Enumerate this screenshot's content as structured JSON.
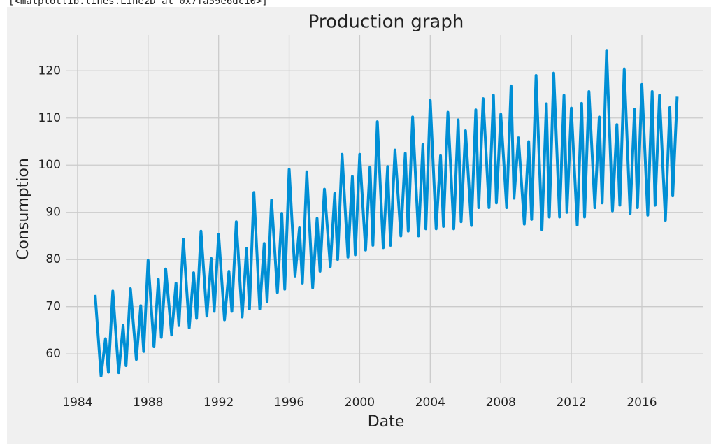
{
  "output_text": "[<matplotlib.lines.Line2D at 0x7fa59e6dc10>]",
  "chart_data": {
    "type": "line",
    "title": "Production graph",
    "x_label": "Date",
    "y_label": "Consumption",
    "x": [
      "1985-01",
      "1985-05",
      "1985-08",
      "1985-10",
      "1986-01",
      "1986-05",
      "1986-08",
      "1986-10",
      "1987-01",
      "1987-05",
      "1987-08",
      "1987-10",
      "1988-01",
      "1988-05",
      "1988-08",
      "1988-10",
      "1989-01",
      "1989-05",
      "1989-08",
      "1989-10",
      "1990-01",
      "1990-05",
      "1990-08",
      "1990-10",
      "1991-01",
      "1991-05",
      "1991-08",
      "1991-10",
      "1992-01",
      "1992-05",
      "1992-08",
      "1992-10",
      "1993-01",
      "1993-05",
      "1993-08",
      "1993-10",
      "1994-01",
      "1994-05",
      "1994-08",
      "1994-10",
      "1995-01",
      "1995-05",
      "1995-08",
      "1995-10",
      "1996-01",
      "1996-05",
      "1996-08",
      "1996-10",
      "1997-01",
      "1997-05",
      "1997-08",
      "1997-10",
      "1998-01",
      "1998-05",
      "1998-08",
      "1998-10",
      "1999-01",
      "1999-05",
      "1999-08",
      "1999-10",
      "2000-01",
      "2000-05",
      "2000-08",
      "2000-10",
      "2001-01",
      "2001-05",
      "2001-08",
      "2001-10",
      "2002-01",
      "2002-05",
      "2002-08",
      "2002-10",
      "2003-01",
      "2003-05",
      "2003-08",
      "2003-10",
      "2004-01",
      "2004-05",
      "2004-08",
      "2004-10",
      "2005-01",
      "2005-05",
      "2005-08",
      "2005-10",
      "2006-01",
      "2006-05",
      "2006-08",
      "2006-10",
      "2007-01",
      "2007-05",
      "2007-08",
      "2007-10",
      "2008-01",
      "2008-05",
      "2008-08",
      "2008-10",
      "2009-01",
      "2009-05",
      "2009-08",
      "2009-10",
      "2010-01",
      "2010-05",
      "2010-08",
      "2010-10",
      "2011-01",
      "2011-05",
      "2011-08",
      "2011-10",
      "2012-01",
      "2012-05",
      "2012-08",
      "2012-10",
      "2013-01",
      "2013-05",
      "2013-08",
      "2013-10",
      "2014-01",
      "2014-05",
      "2014-08",
      "2014-10",
      "2015-01",
      "2015-05",
      "2015-08",
      "2015-10",
      "2016-01",
      "2016-05",
      "2016-08",
      "2016-10",
      "2017-01",
      "2017-05",
      "2017-08",
      "2017-10",
      "2018-01"
    ],
    "series": [
      {
        "name": "Consumption",
        "color": "#008fd5",
        "values": [
          72.5,
          55.3,
          63.2,
          56.1,
          73.3,
          56.0,
          66.0,
          57.5,
          73.8,
          58.8,
          70.2,
          60.5,
          79.8,
          61.5,
          75.8,
          63.5,
          78.0,
          64.0,
          75.0,
          66.0,
          84.3,
          65.5,
          77.2,
          67.5,
          86.0,
          68.0,
          80.2,
          69.0,
          85.3,
          67.2,
          77.5,
          69.0,
          88.0,
          67.8,
          82.3,
          69.5,
          94.2,
          69.5,
          83.4,
          71.0,
          92.6,
          73.0,
          89.8,
          73.7,
          99.1,
          76.5,
          86.7,
          75.0,
          98.6,
          74.0,
          88.7,
          77.5,
          94.9,
          78.5,
          94.0,
          80.0,
          102.3,
          80.5,
          97.6,
          81.0,
          102.3,
          82.0,
          99.6,
          83.0,
          109.2,
          82.5,
          99.7,
          83.0,
          103.2,
          85.0,
          102.5,
          86.0,
          110.2,
          85.0,
          104.4,
          86.5,
          113.7,
          86.5,
          102.0,
          87.0,
          111.2,
          86.5,
          109.6,
          88.0,
          107.3,
          87.2,
          111.7,
          91.0,
          114.1,
          91.0,
          114.8,
          92.0,
          110.8,
          91.0,
          116.8,
          93.0,
          105.8,
          87.5,
          105.0,
          88.5,
          119.0,
          86.3,
          113.0,
          89.0,
          119.5,
          89.0,
          114.8,
          90.0,
          112.1,
          87.3,
          113.1,
          89.0,
          115.6,
          91.0,
          110.2,
          92.0,
          124.3,
          90.3,
          108.6,
          91.5,
          120.4,
          89.7,
          111.8,
          91.0,
          117.1,
          89.4,
          115.6,
          91.5,
          114.8,
          88.3,
          112.2,
          93.5,
          114.5
        ]
      }
    ],
    "xlim": [
      1983.37,
      2019.45
    ],
    "xticks": [
      1984,
      1988,
      1992,
      1996,
      2000,
      2004,
      2008,
      2012,
      2016
    ],
    "ylim": [
      53.8,
      127.6
    ],
    "yticks": [
      60,
      70,
      80,
      90,
      100,
      110,
      120
    ],
    "grid": true
  }
}
